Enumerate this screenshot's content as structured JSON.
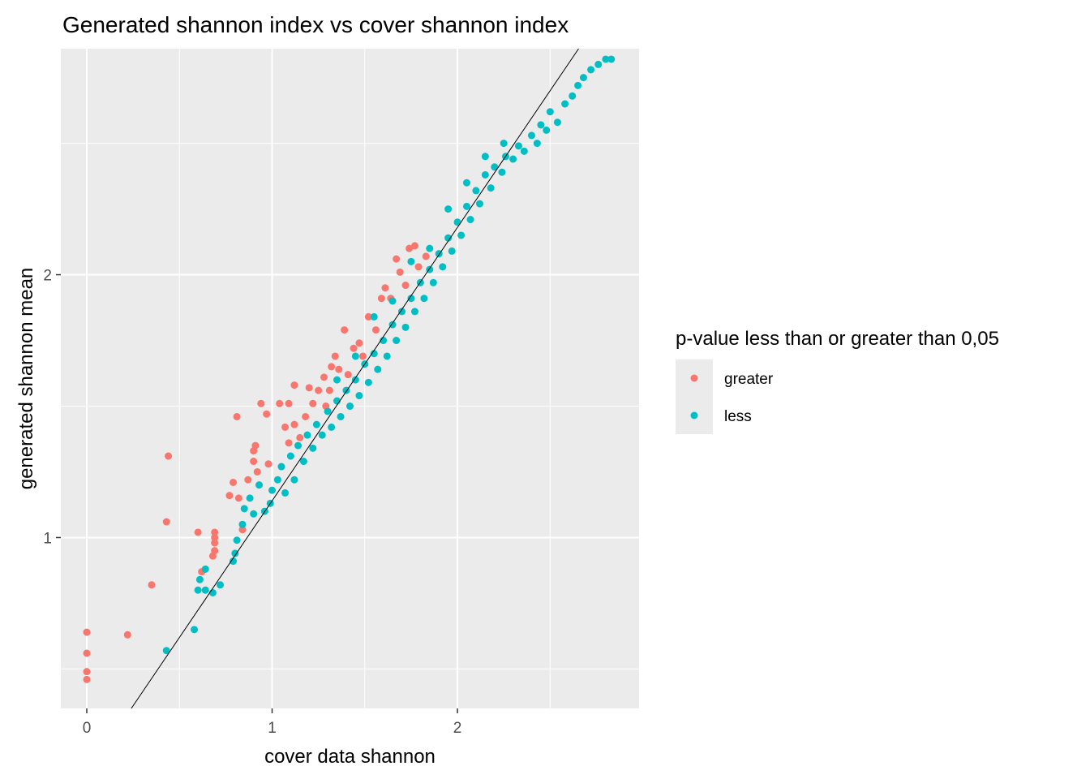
{
  "chart_data": {
    "type": "scatter",
    "title": "Generated shannon index vs cover shannon index",
    "xlabel": "cover data shannon",
    "ylabel": "generated shannon mean",
    "xlim": [
      -0.14,
      2.98
    ],
    "ylim": [
      0.35,
      2.86
    ],
    "x_ticks": [
      0,
      1,
      2
    ],
    "y_ticks": [
      1,
      2
    ],
    "grid": true,
    "reference_line": {
      "slope": 1.04,
      "intercept": 0.1
    },
    "legend": {
      "title": "p-value less than or greater than 0,05",
      "placement": "right",
      "entries": [
        {
          "label": "greater",
          "color": "#F8766D"
        },
        {
          "label": "less",
          "color": "#00BFC4"
        }
      ]
    },
    "series": [
      {
        "name": "greater",
        "color": "#F8766D",
        "points": [
          [
            0.0,
            0.46
          ],
          [
            0.0,
            0.49
          ],
          [
            0.0,
            0.56
          ],
          [
            0.0,
            0.64
          ],
          [
            0.22,
            0.63
          ],
          [
            0.35,
            0.82
          ],
          [
            0.43,
            1.06
          ],
          [
            0.44,
            1.31
          ],
          [
            0.6,
            1.02
          ],
          [
            0.62,
            0.87
          ],
          [
            0.68,
            0.93
          ],
          [
            0.69,
            0.95
          ],
          [
            0.69,
            0.98
          ],
          [
            0.69,
            1.0
          ],
          [
            0.69,
            1.02
          ],
          [
            0.77,
            1.16
          ],
          [
            0.79,
            1.21
          ],
          [
            0.81,
            1.46
          ],
          [
            0.82,
            1.15
          ],
          [
            0.84,
            1.03
          ],
          [
            0.87,
            1.22
          ],
          [
            0.9,
            1.33
          ],
          [
            0.9,
            1.29
          ],
          [
            0.91,
            1.35
          ],
          [
            0.92,
            1.25
          ],
          [
            0.94,
            1.51
          ],
          [
            0.97,
            1.47
          ],
          [
            0.98,
            1.28
          ],
          [
            1.04,
            1.51
          ],
          [
            1.07,
            1.42
          ],
          [
            1.09,
            1.51
          ],
          [
            1.09,
            1.36
          ],
          [
            1.12,
            1.58
          ],
          [
            1.12,
            1.43
          ],
          [
            1.15,
            1.38
          ],
          [
            1.18,
            1.46
          ],
          [
            1.2,
            1.57
          ],
          [
            1.22,
            1.51
          ],
          [
            1.25,
            1.56
          ],
          [
            1.28,
            1.61
          ],
          [
            1.29,
            1.5
          ],
          [
            1.31,
            1.56
          ],
          [
            1.32,
            1.65
          ],
          [
            1.34,
            1.69
          ],
          [
            1.36,
            1.64
          ],
          [
            1.39,
            1.79
          ],
          [
            1.41,
            1.62
          ],
          [
            1.44,
            1.72
          ],
          [
            1.47,
            1.74
          ],
          [
            1.49,
            1.69
          ],
          [
            1.52,
            1.84
          ],
          [
            1.56,
            1.79
          ],
          [
            1.59,
            1.91
          ],
          [
            1.61,
            1.95
          ],
          [
            1.64,
            1.91
          ],
          [
            1.67,
            2.06
          ],
          [
            1.69,
            2.01
          ],
          [
            1.72,
            1.96
          ],
          [
            1.74,
            2.1
          ],
          [
            1.77,
            2.11
          ],
          [
            1.79,
            2.03
          ],
          [
            1.83,
            2.07
          ]
        ]
      },
      {
        "name": "less",
        "color": "#00BFC4",
        "points": [
          [
            0.43,
            0.57
          ],
          [
            0.58,
            0.65
          ],
          [
            0.6,
            0.8
          ],
          [
            0.61,
            0.84
          ],
          [
            0.64,
            0.88
          ],
          [
            0.64,
            0.8
          ],
          [
            0.68,
            0.79
          ],
          [
            0.72,
            0.82
          ],
          [
            0.79,
            0.91
          ],
          [
            0.8,
            0.94
          ],
          [
            0.81,
            0.99
          ],
          [
            0.84,
            1.05
          ],
          [
            0.85,
            1.11
          ],
          [
            0.88,
            1.15
          ],
          [
            0.9,
            1.09
          ],
          [
            0.93,
            1.2
          ],
          [
            0.96,
            1.1
          ],
          [
            0.99,
            1.13
          ],
          [
            1.0,
            1.18
          ],
          [
            1.03,
            1.22
          ],
          [
            1.05,
            1.27
          ],
          [
            1.07,
            1.17
          ],
          [
            1.1,
            1.31
          ],
          [
            1.12,
            1.22
          ],
          [
            1.14,
            1.35
          ],
          [
            1.17,
            1.29
          ],
          [
            1.19,
            1.39
          ],
          [
            1.22,
            1.34
          ],
          [
            1.24,
            1.43
          ],
          [
            1.27,
            1.39
          ],
          [
            1.3,
            1.48
          ],
          [
            1.32,
            1.42
          ],
          [
            1.35,
            1.52
          ],
          [
            1.37,
            1.46
          ],
          [
            1.4,
            1.56
          ],
          [
            1.42,
            1.5
          ],
          [
            1.45,
            1.6
          ],
          [
            1.47,
            1.54
          ],
          [
            1.5,
            1.66
          ],
          [
            1.52,
            1.59
          ],
          [
            1.55,
            1.7
          ],
          [
            1.57,
            1.64
          ],
          [
            1.6,
            1.75
          ],
          [
            1.62,
            1.69
          ],
          [
            1.65,
            1.81
          ],
          [
            1.67,
            1.75
          ],
          [
            1.7,
            1.86
          ],
          [
            1.72,
            1.8
          ],
          [
            1.75,
            1.91
          ],
          [
            1.77,
            1.86
          ],
          [
            1.8,
            1.97
          ],
          [
            1.82,
            1.91
          ],
          [
            1.85,
            2.02
          ],
          [
            1.87,
            1.97
          ],
          [
            1.9,
            2.08
          ],
          [
            1.92,
            2.03
          ],
          [
            1.95,
            2.14
          ],
          [
            1.97,
            2.09
          ],
          [
            2.0,
            2.2
          ],
          [
            2.02,
            2.15
          ],
          [
            2.05,
            2.26
          ],
          [
            2.07,
            2.21
          ],
          [
            2.1,
            2.32
          ],
          [
            2.12,
            2.27
          ],
          [
            2.15,
            2.38
          ],
          [
            2.18,
            2.33
          ],
          [
            2.2,
            2.41
          ],
          [
            2.24,
            2.39
          ],
          [
            2.26,
            2.45
          ],
          [
            2.3,
            2.44
          ],
          [
            2.33,
            2.49
          ],
          [
            2.36,
            2.47
          ],
          [
            2.4,
            2.53
          ],
          [
            2.43,
            2.5
          ],
          [
            2.45,
            2.57
          ],
          [
            2.48,
            2.55
          ],
          [
            2.5,
            2.62
          ],
          [
            2.54,
            2.58
          ],
          [
            2.58,
            2.65
          ],
          [
            2.62,
            2.68
          ],
          [
            2.65,
            2.72
          ],
          [
            2.68,
            2.75
          ],
          [
            2.72,
            2.78
          ],
          [
            2.76,
            2.8
          ],
          [
            2.8,
            2.82
          ],
          [
            2.83,
            2.82
          ],
          [
            1.55,
            1.84
          ],
          [
            1.65,
            1.9
          ],
          [
            1.75,
            2.05
          ],
          [
            1.85,
            2.1
          ],
          [
            1.95,
            2.25
          ],
          [
            2.05,
            2.35
          ],
          [
            2.15,
            2.45
          ],
          [
            2.25,
            2.5
          ],
          [
            1.45,
            1.69
          ],
          [
            1.35,
            1.6
          ]
        ]
      }
    ]
  }
}
